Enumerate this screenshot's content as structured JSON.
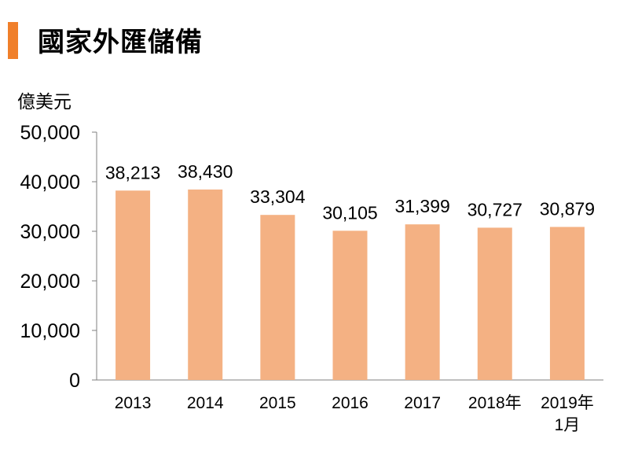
{
  "header": {
    "title": "國家外匯儲備",
    "accent": "#F07F2A"
  },
  "chart_data": {
    "type": "bar",
    "title": "國家外匯儲備",
    "ylabel": "億美元",
    "xlabel": "",
    "categories": [
      "2013",
      "2014",
      "2015",
      "2016",
      "2017",
      "2018年",
      "2019年\n1月"
    ],
    "values": [
      38213,
      38430,
      33304,
      30105,
      31399,
      30727,
      30879
    ],
    "value_labels": [
      "38,213",
      "38,430",
      "33,304",
      "30,105",
      "31,399",
      "30,727",
      "30,879"
    ],
    "ylim": [
      0,
      50000
    ],
    "yticks": [
      0,
      10000,
      20000,
      30000,
      40000,
      50000
    ],
    "ytick_labels": [
      "0",
      "10,000",
      "20,000",
      "30,000",
      "40,000",
      "50,000"
    ],
    "bar_color": "#F4B183",
    "grid": false,
    "legend": "none"
  }
}
